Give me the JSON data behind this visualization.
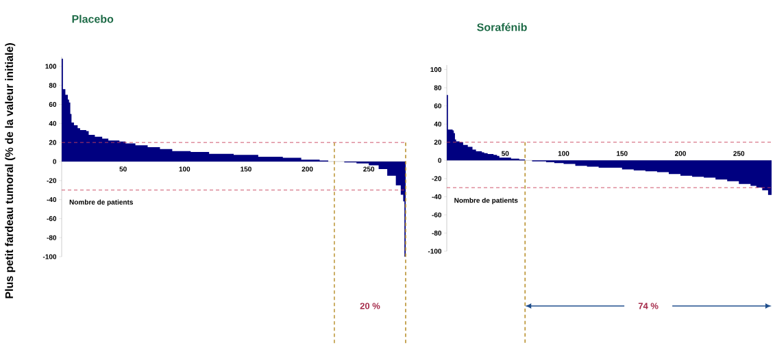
{
  "chart_data": [
    {
      "type": "area",
      "title": "Placebo",
      "xlabel": "Nombre de patients",
      "ylabel": "Plus petit fardeau tumoral (% de la valeur initiale)",
      "color": "#000080",
      "x": [
        0,
        1,
        3,
        5,
        6,
        7,
        8,
        10,
        13,
        15,
        20,
        22,
        27,
        33,
        38,
        47,
        52,
        60,
        70,
        80,
        90,
        105,
        120,
        140,
        160,
        180,
        195,
        210,
        217,
        230,
        240,
        250,
        258,
        265,
        272,
        276,
        278,
        279,
        280
      ],
      "values": [
        108,
        76,
        70,
        65,
        62,
        50,
        41,
        38,
        35,
        33,
        32,
        28,
        26,
        24,
        22,
        21,
        19,
        17,
        15,
        13,
        11,
        10,
        8,
        7,
        5,
        4,
        2,
        1,
        0,
        -1,
        -2,
        -4,
        -8,
        -15,
        -25,
        -35,
        -42,
        -100,
        -100
      ],
      "xlim": [
        0,
        280
      ],
      "ylim": [
        -100,
        110
      ],
      "xticks": [
        50,
        100,
        150,
        200,
        250
      ],
      "yticks": [
        -100,
        -80,
        -60,
        -40,
        -20,
        0,
        20,
        40,
        60,
        80,
        100
      ],
      "ref_lines": [
        {
          "axis": "y",
          "value": 20,
          "color": "#c8415a",
          "line_style": "dashed"
        },
        {
          "axis": "y",
          "value": -30,
          "color": "#c8415a",
          "line_style": "dashed"
        },
        {
          "axis": "x",
          "value": 222,
          "color": "#b8902c",
          "line_style": "dashed"
        },
        {
          "axis": "x",
          "value": 280,
          "color": "#b8902c",
          "line_style": "dashed"
        }
      ],
      "annotations": [
        "20 %"
      ]
    },
    {
      "type": "area",
      "title": "Sorafénib",
      "xlabel": "Nombre de patients",
      "color": "#000080",
      "x": [
        0,
        1,
        5,
        6,
        7,
        8,
        11,
        14,
        18,
        22,
        25,
        30,
        32,
        35,
        40,
        43,
        45,
        55,
        62,
        67,
        73,
        85,
        92,
        100,
        110,
        120,
        130,
        150,
        160,
        170,
        180,
        190,
        200,
        210,
        220,
        230,
        240,
        250,
        260,
        265,
        270,
        275,
        278
      ],
      "values": [
        72,
        34,
        33,
        30,
        23,
        21,
        20,
        17,
        15,
        12,
        10,
        9,
        8,
        7,
        6,
        5,
        3,
        2,
        1,
        0,
        -1,
        -2,
        -3,
        -4,
        -6,
        -7,
        -8,
        -10,
        -11,
        -12,
        -13,
        -15,
        -17,
        -18,
        -19,
        -21,
        -23,
        -26,
        -28,
        -30,
        -33,
        -38,
        -41
      ],
      "xlim": [
        0,
        278
      ],
      "ylim": [
        -100,
        105
      ],
      "xticks": [
        50,
        100,
        150,
        200,
        250
      ],
      "yticks": [
        -100,
        -80,
        -60,
        -40,
        -20,
        0,
        20,
        40,
        60,
        80,
        100
      ],
      "ref_lines": [
        {
          "axis": "y",
          "value": 20,
          "color": "#c8415a",
          "line_style": "dashed"
        },
        {
          "axis": "y",
          "value": -30,
          "color": "#c8415a",
          "line_style": "dashed"
        },
        {
          "axis": "x",
          "value": 67,
          "color": "#b8902c",
          "line_style": "dashed"
        }
      ],
      "annotations": [
        "74 %"
      ]
    }
  ]
}
